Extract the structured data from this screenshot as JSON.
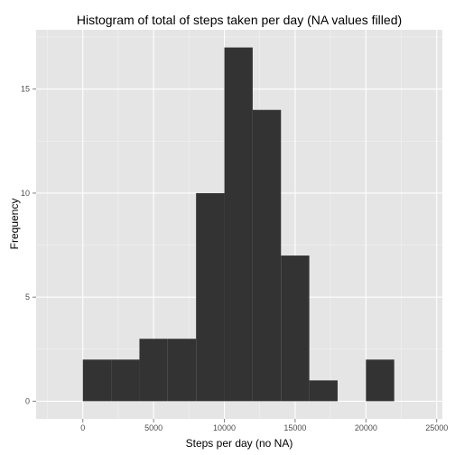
{
  "chart_data": {
    "type": "bar",
    "title": "Histogram of total of steps taken per day (NA values filled)",
    "xlabel": "Steps per day (no NA)",
    "ylabel": "Frequency",
    "bin_width": 2000,
    "bins": [
      {
        "start": 0,
        "end": 2000,
        "count": 2
      },
      {
        "start": 2000,
        "end": 4000,
        "count": 2
      },
      {
        "start": 4000,
        "end": 6000,
        "count": 3
      },
      {
        "start": 6000,
        "end": 8000,
        "count": 3
      },
      {
        "start": 8000,
        "end": 10000,
        "count": 10
      },
      {
        "start": 10000,
        "end": 12000,
        "count": 17
      },
      {
        "start": 12000,
        "end": 14000,
        "count": 14
      },
      {
        "start": 14000,
        "end": 16000,
        "count": 7
      },
      {
        "start": 16000,
        "end": 18000,
        "count": 1
      },
      {
        "start": 18000,
        "end": 20000,
        "count": 0
      },
      {
        "start": 20000,
        "end": 22000,
        "count": 2
      }
    ],
    "xlim": [
      -3300,
      25400
    ],
    "ylim": [
      -0.85,
      17.85
    ],
    "x_ticks": [
      0,
      5000,
      10000,
      15000,
      20000,
      25000
    ],
    "y_ticks": [
      0,
      5,
      10,
      15
    ],
    "x_tick_labels": [
      "0",
      "5000",
      "10000",
      "15000",
      "20000",
      "25000"
    ],
    "y_tick_labels": [
      "0",
      "5",
      "10",
      "15"
    ],
    "grid": true,
    "colors": {
      "bar": "#333333",
      "panel": "#e5e5e5",
      "grid_major": "#ffffff",
      "grid_minor": "#f2f2f2"
    }
  }
}
